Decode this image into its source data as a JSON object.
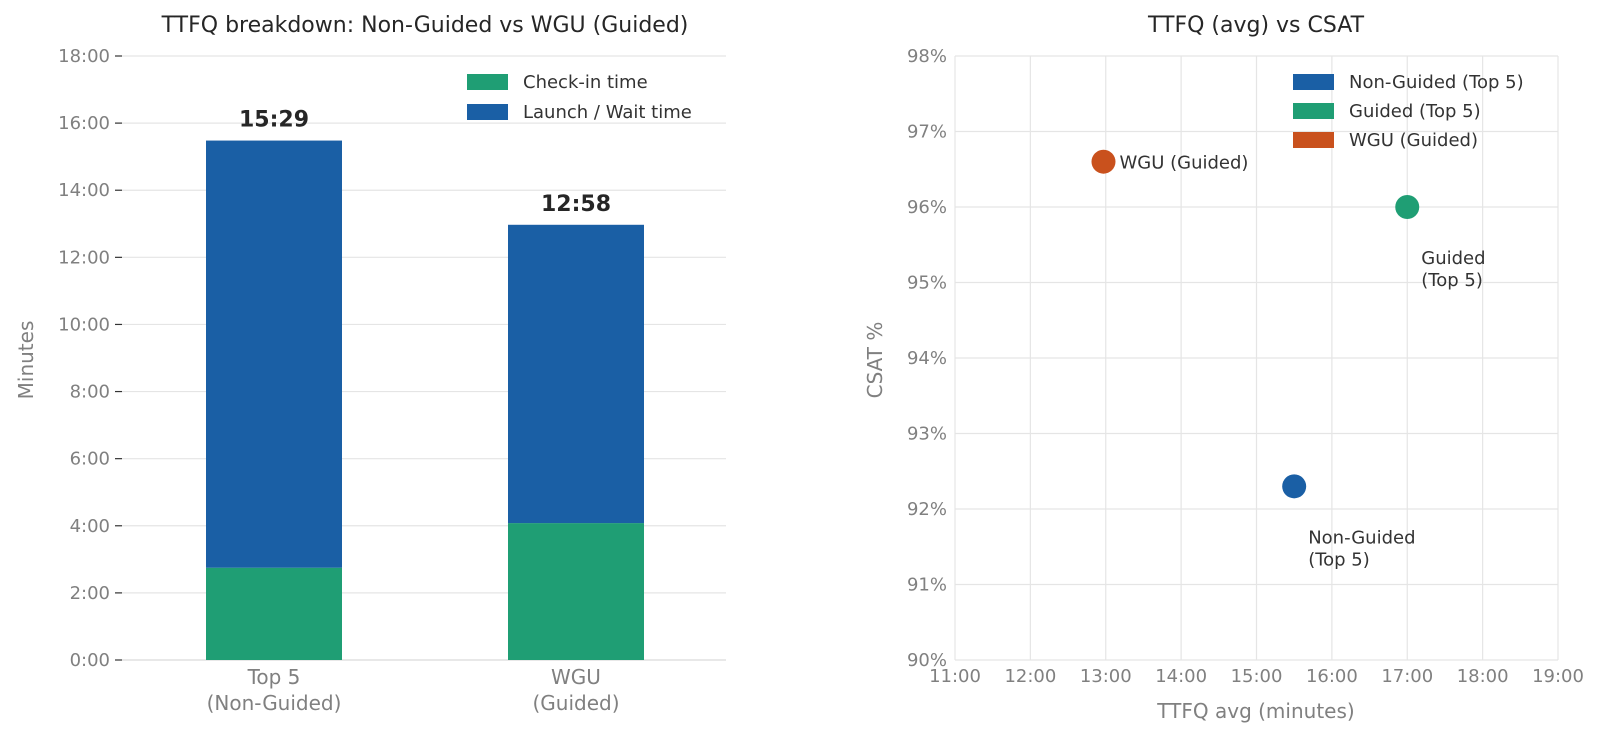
{
  "chart_data": [
    {
      "type": "bar",
      "stacked": true,
      "title": "TTFQ breakdown: Non-Guided vs WGU (Guided)",
      "ylabel": "Minutes",
      "xlabel": "",
      "categories": [
        "Top 5\n(Non-Guided)",
        "WGU\n(Guided)"
      ],
      "series": [
        {
          "name": "Check-in time",
          "values": [
            2.75,
            4.08
          ],
          "color": "#1f9e74"
        },
        {
          "name": "Launch / Wait time",
          "values": [
            12.73,
            8.89
          ],
          "color": "#1a5fa5"
        }
      ],
      "totals": [
        "15:29",
        "12:58"
      ],
      "ylim": [
        0,
        18
      ],
      "yticks": [
        "0:00",
        "2:00",
        "4:00",
        "6:00",
        "8:00",
        "10:00",
        "12:00",
        "14:00",
        "16:00",
        "18:00"
      ],
      "grid": "horizontal",
      "legend": "top-right"
    },
    {
      "type": "scatter",
      "title": "TTFQ (avg) vs CSAT",
      "xlabel": "TTFQ avg (minutes)",
      "ylabel": "CSAT %",
      "xlim": [
        11,
        19
      ],
      "ylim": [
        90,
        98
      ],
      "xticks": [
        "11:00",
        "12:00",
        "13:00",
        "14:00",
        "15:00",
        "16:00",
        "17:00",
        "18:00",
        "19:00"
      ],
      "yticks": [
        "90%",
        "91%",
        "92%",
        "93%",
        "94%",
        "95%",
        "96%",
        "97%",
        "98%"
      ],
      "series": [
        {
          "name": "Non-Guided (Top 5)",
          "x": [
            15.5
          ],
          "y": [
            92.3
          ],
          "color": "#1a5fa5",
          "label": [
            "Non-Guided",
            "(Top 5)"
          ]
        },
        {
          "name": "Guided (Top 5)",
          "x": [
            17.0
          ],
          "y": [
            96.0
          ],
          "color": "#1f9e74",
          "label": [
            "Guided",
            "(Top 5)"
          ]
        },
        {
          "name": "WGU (Guided)",
          "x": [
            12.97
          ],
          "y": [
            96.6
          ],
          "color": "#c9511d",
          "label": [
            "WGU (Guided)"
          ]
        }
      ],
      "grid": true,
      "legend": "top-right"
    }
  ]
}
